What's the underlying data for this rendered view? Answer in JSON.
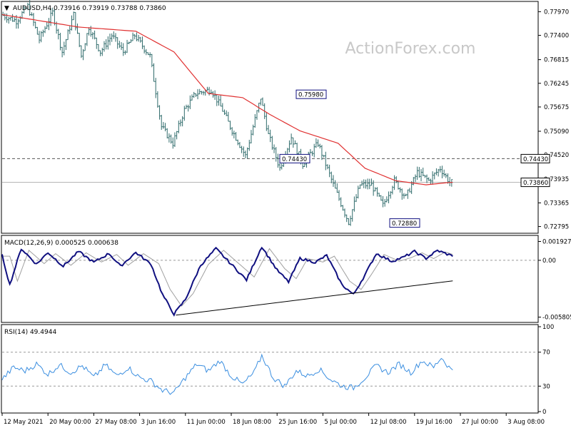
{
  "watermark": "ActionForex.com",
  "colors": {
    "candle": "#2f6b6b",
    "ma": "#e03030",
    "macd": "#101080",
    "signal": "#a0a0a0",
    "rsi": "#3a8ee0",
    "tag_border": "#101080",
    "axis": "#000000",
    "dashed": "#555555",
    "hline": "#b0b0b0"
  },
  "chart_data": [
    {
      "type": "candlestick",
      "title": "AUDUSD,H4",
      "ohlc_readout": [
        "0.73916",
        "0.73919",
        "0.73788",
        "0.73860"
      ],
      "ylim": [
        0.7265,
        0.782
      ],
      "y_ticks": [
        "0.77970",
        "0.77400",
        "0.76815",
        "0.76245",
        "0.75675",
        "0.75090",
        "0.74520",
        "0.73935",
        "0.73365",
        "0.72795"
      ],
      "current_price": "0.73860",
      "resistance_level": "0.74430",
      "annotations": [
        {
          "text": "0.75980",
          "value": 0.7598
        },
        {
          "text": "0.74430",
          "value": 0.7443
        },
        {
          "text": "0.72880",
          "value": 0.7288
        }
      ],
      "key_points": [
        {
          "t": 0,
          "v": 0.779
        },
        {
          "t": 8,
          "v": 0.7775
        },
        {
          "t": 14,
          "v": 0.781
        },
        {
          "t": 20,
          "v": 0.773
        },
        {
          "t": 27,
          "v": 0.7795
        },
        {
          "t": 32,
          "v": 0.77
        },
        {
          "t": 38,
          "v": 0.779
        },
        {
          "t": 42,
          "v": 0.769
        },
        {
          "t": 46,
          "v": 0.776
        },
        {
          "t": 52,
          "v": 0.77
        },
        {
          "t": 58,
          "v": 0.774
        },
        {
          "t": 64,
          "v": 0.77
        },
        {
          "t": 70,
          "v": 0.774
        },
        {
          "t": 78,
          "v": 0.769
        },
        {
          "t": 84,
          "v": 0.752
        },
        {
          "t": 90,
          "v": 0.748
        },
        {
          "t": 96,
          "v": 0.756
        },
        {
          "t": 102,
          "v": 0.76
        },
        {
          "t": 110,
          "v": 0.761
        },
        {
          "t": 116,
          "v": 0.756
        },
        {
          "t": 120,
          "v": 0.752
        },
        {
          "t": 128,
          "v": 0.745
        },
        {
          "t": 136,
          "v": 0.759
        },
        {
          "t": 140,
          "v": 0.75
        },
        {
          "t": 146,
          "v": 0.742
        },
        {
          "t": 152,
          "v": 0.7495
        },
        {
          "t": 158,
          "v": 0.743
        },
        {
          "t": 166,
          "v": 0.748
        },
        {
          "t": 174,
          "v": 0.738
        },
        {
          "t": 182,
          "v": 0.729
        },
        {
          "t": 188,
          "v": 0.738
        },
        {
          "t": 194,
          "v": 0.738
        },
        {
          "t": 200,
          "v": 0.733
        },
        {
          "t": 206,
          "v": 0.739
        },
        {
          "t": 212,
          "v": 0.735
        },
        {
          "t": 218,
          "v": 0.741
        },
        {
          "t": 224,
          "v": 0.739
        },
        {
          "t": 230,
          "v": 0.742
        },
        {
          "t": 235,
          "v": 0.7386
        }
      ],
      "ma_key_points": [
        {
          "t": 0,
          "v": 0.779
        },
        {
          "t": 40,
          "v": 0.776
        },
        {
          "t": 70,
          "v": 0.775
        },
        {
          "t": 90,
          "v": 0.77
        },
        {
          "t": 108,
          "v": 0.76
        },
        {
          "t": 126,
          "v": 0.759
        },
        {
          "t": 140,
          "v": 0.755
        },
        {
          "t": 156,
          "v": 0.751
        },
        {
          "t": 176,
          "v": 0.748
        },
        {
          "t": 190,
          "v": 0.742
        },
        {
          "t": 206,
          "v": 0.739
        },
        {
          "t": 222,
          "v": 0.738
        },
        {
          "t": 235,
          "v": 0.7386
        }
      ],
      "n_bars": 236
    },
    {
      "type": "line",
      "title": "MACD(12,26,9) 0.000525 0.000638",
      "ylim": [
        -0.0062,
        0.0024
      ],
      "y_ticks": [
        {
          "text": "0.001927",
          "value": 0.001927
        },
        {
          "text": "0.00",
          "value": 0
        },
        {
          "text": "-0.005805",
          "value": -0.005805
        }
      ],
      "macd_key_points": [
        {
          "t": 0,
          "v": 0.0005
        },
        {
          "t": 4,
          "v": -0.0025
        },
        {
          "t": 10,
          "v": 0.0012
        },
        {
          "t": 18,
          "v": -0.0004
        },
        {
          "t": 24,
          "v": 0.0008
        },
        {
          "t": 32,
          "v": -0.0006
        },
        {
          "t": 40,
          "v": 0.0009
        },
        {
          "t": 48,
          "v": -0.0002
        },
        {
          "t": 56,
          "v": 0.0007
        },
        {
          "t": 62,
          "v": -0.0006
        },
        {
          "t": 70,
          "v": 0.0008
        },
        {
          "t": 78,
          "v": -0.0004
        },
        {
          "t": 84,
          "v": -0.0035
        },
        {
          "t": 90,
          "v": -0.0055
        },
        {
          "t": 96,
          "v": -0.004
        },
        {
          "t": 104,
          "v": -0.0005
        },
        {
          "t": 112,
          "v": 0.0012
        },
        {
          "t": 120,
          "v": -0.0004
        },
        {
          "t": 128,
          "v": -0.002
        },
        {
          "t": 136,
          "v": 0.0014
        },
        {
          "t": 144,
          "v": -0.001
        },
        {
          "t": 150,
          "v": -0.0022
        },
        {
          "t": 156,
          "v": 0.0002
        },
        {
          "t": 164,
          "v": -0.0002
        },
        {
          "t": 170,
          "v": 0.0005
        },
        {
          "t": 178,
          "v": -0.0025
        },
        {
          "t": 184,
          "v": -0.0035
        },
        {
          "t": 190,
          "v": -0.0015
        },
        {
          "t": 196,
          "v": 0.0007
        },
        {
          "t": 204,
          "v": -0.0001
        },
        {
          "t": 210,
          "v": 0.0003
        },
        {
          "t": 216,
          "v": 0.0009
        },
        {
          "t": 222,
          "v": 0.0002
        },
        {
          "t": 228,
          "v": 0.001
        },
        {
          "t": 235,
          "v": 0.0005
        }
      ],
      "trendline": [
        {
          "t": 91,
          "v": -0.0056
        },
        {
          "t": 236,
          "v": -0.0021
        }
      ]
    },
    {
      "type": "line",
      "title": "RSI(14) 49.4944",
      "ylim": [
        0,
        100
      ],
      "y_ticks": [
        {
          "text": "100",
          "value": 100
        },
        {
          "text": "70",
          "value": 70
        },
        {
          "text": "30",
          "value": 30
        },
        {
          "text": "0",
          "value": 0
        }
      ],
      "levels": [
        70,
        30
      ],
      "rsi_key_points": [
        {
          "t": 0,
          "v": 38
        },
        {
          "t": 6,
          "v": 52
        },
        {
          "t": 12,
          "v": 48
        },
        {
          "t": 18,
          "v": 56
        },
        {
          "t": 24,
          "v": 44
        },
        {
          "t": 30,
          "v": 55
        },
        {
          "t": 36,
          "v": 46
        },
        {
          "t": 42,
          "v": 54
        },
        {
          "t": 48,
          "v": 40
        },
        {
          "t": 54,
          "v": 55
        },
        {
          "t": 60,
          "v": 42
        },
        {
          "t": 66,
          "v": 52
        },
        {
          "t": 72,
          "v": 40
        },
        {
          "t": 78,
          "v": 36
        },
        {
          "t": 84,
          "v": 25
        },
        {
          "t": 90,
          "v": 22
        },
        {
          "t": 96,
          "v": 40
        },
        {
          "t": 102,
          "v": 56
        },
        {
          "t": 108,
          "v": 48
        },
        {
          "t": 114,
          "v": 60
        },
        {
          "t": 120,
          "v": 42
        },
        {
          "t": 126,
          "v": 32
        },
        {
          "t": 132,
          "v": 46
        },
        {
          "t": 136,
          "v": 66
        },
        {
          "t": 142,
          "v": 40
        },
        {
          "t": 148,
          "v": 30
        },
        {
          "t": 154,
          "v": 48
        },
        {
          "t": 160,
          "v": 42
        },
        {
          "t": 166,
          "v": 50
        },
        {
          "t": 172,
          "v": 38
        },
        {
          "t": 178,
          "v": 30
        },
        {
          "t": 184,
          "v": 28
        },
        {
          "t": 190,
          "v": 40
        },
        {
          "t": 196,
          "v": 54
        },
        {
          "t": 202,
          "v": 46
        },
        {
          "t": 208,
          "v": 56
        },
        {
          "t": 214,
          "v": 46
        },
        {
          "t": 220,
          "v": 60
        },
        {
          "t": 226,
          "v": 52
        },
        {
          "t": 230,
          "v": 64
        },
        {
          "t": 235,
          "v": 49.5
        }
      ]
    }
  ],
  "x_axis": {
    "labels": [
      {
        "text": "12 May 2021",
        "t": 0
      },
      {
        "text": "20 May 00:00",
        "t": 24
      },
      {
        "text": "27 May 08:00",
        "t": 48
      },
      {
        "text": "3 Jun 16:00",
        "t": 72
      },
      {
        "text": "11 Jun 00:00",
        "t": 96
      },
      {
        "text": "18 Jun 08:00",
        "t": 120
      },
      {
        "text": "25 Jun 16:00",
        "t": 144
      },
      {
        "text": "5 Jul 00:00",
        "t": 168
      },
      {
        "text": "12 Jul 08:00",
        "t": 192
      },
      {
        "text": "19 Jul 16:00",
        "t": 216
      },
      {
        "text": "27 Jul 00:00",
        "t": 240
      },
      {
        "text": "3 Aug 08:00",
        "t": 264
      }
    ],
    "t_max": 280
  }
}
